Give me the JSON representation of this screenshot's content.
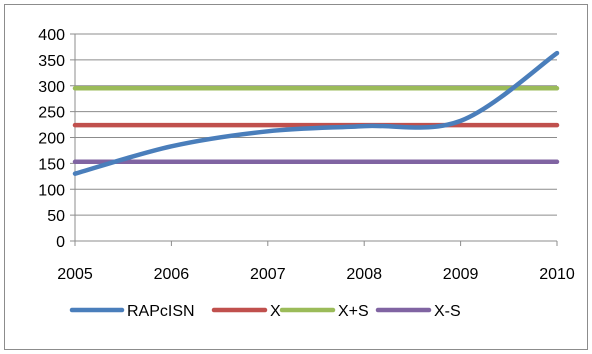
{
  "chart_data": {
    "type": "line",
    "title": "",
    "xlabel": "",
    "ylabel": "",
    "x": [
      "2005",
      "2006",
      "2007",
      "2008",
      "2009",
      "2010"
    ],
    "xlim": [
      2005,
      2010
    ],
    "ylim": [
      0,
      400
    ],
    "y_ticks": [
      0,
      50,
      100,
      150,
      200,
      250,
      300,
      350,
      400
    ],
    "grid": true,
    "legend_position": "bottom",
    "series": [
      {
        "name": "RAPcISN",
        "color": "#4a7ebb",
        "x": [
          2005,
          2006,
          2007,
          2008,
          2009,
          2010
        ],
        "values": [
          130,
          183,
          212,
          222,
          232,
          363
        ]
      },
      {
        "name": "X",
        "color": "#c0504d",
        "x": [
          2005,
          2010
        ],
        "values": [
          224,
          224
        ]
      },
      {
        "name": "X+S",
        "color": "#9bbb59",
        "x": [
          2005,
          2010
        ],
        "values": [
          295,
          295
        ]
      },
      {
        "name": "X-S",
        "color": "#8064a2",
        "x": [
          2005,
          2010
        ],
        "values": [
          153,
          153
        ]
      }
    ]
  }
}
